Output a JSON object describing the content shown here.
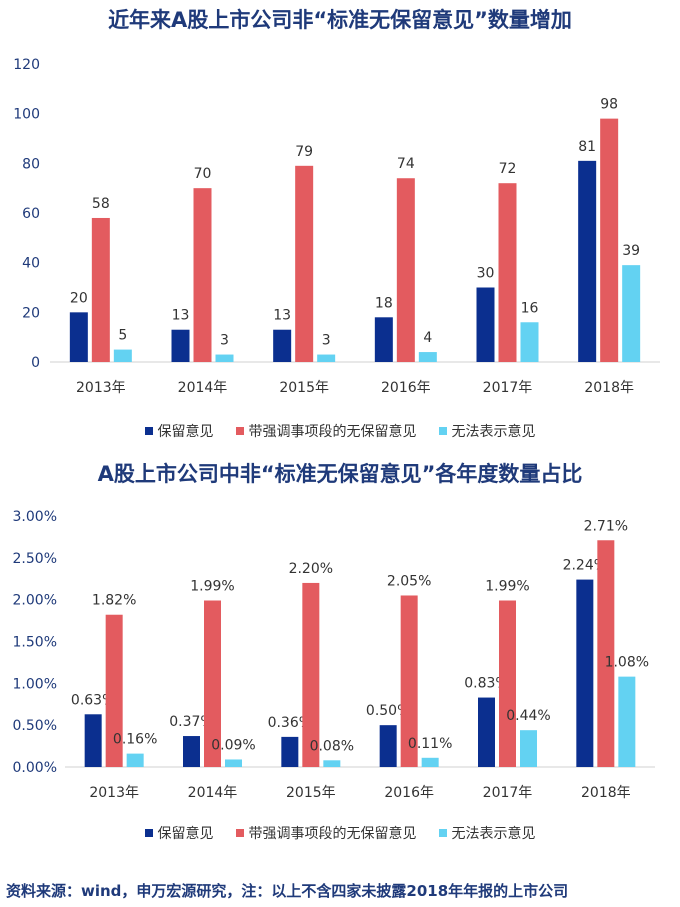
{
  "colors": {
    "retained": "#0b2f8f",
    "emphasis": "#e35b5f",
    "disclaimer": "#63d2f2",
    "title": "#1f3a7a"
  },
  "chart_data": [
    {
      "type": "bar",
      "title": "近年来A股上市公司非“标准无保留意见”数量增加",
      "categories": [
        "2013年",
        "2014年",
        "2015年",
        "2016年",
        "2017年",
        "2018年"
      ],
      "series": [
        {
          "name": "保留意见",
          "values": [
            20,
            13,
            13,
            18,
            30,
            81
          ]
        },
        {
          "name": "带强调事项段的无保留意见",
          "values": [
            58,
            70,
            79,
            74,
            72,
            98
          ]
        },
        {
          "name": "无法表示意见",
          "values": [
            5,
            3,
            3,
            4,
            16,
            39
          ]
        }
      ],
      "value_labels": [
        [
          "20",
          "13",
          "13",
          "18",
          "30",
          "81"
        ],
        [
          "58",
          "70",
          "79",
          "74",
          "72",
          "98"
        ],
        [
          "5",
          "3",
          "3",
          "4",
          "16",
          "39"
        ]
      ],
      "yticks": [
        "0",
        "20",
        "40",
        "60",
        "80",
        "100",
        "120"
      ],
      "ylim": [
        0,
        120
      ],
      "legend_position": "bottom"
    },
    {
      "type": "bar",
      "title": "A股上市公司中非“标准无保留意见”各年度数量占比",
      "categories": [
        "2013年",
        "2014年",
        "2015年",
        "2016年",
        "2017年",
        "2018年"
      ],
      "series": [
        {
          "name": "保留意见",
          "values": [
            0.63,
            0.37,
            0.36,
            0.5,
            0.83,
            2.24
          ]
        },
        {
          "name": "带强调事项段的无保留意见",
          "values": [
            1.82,
            1.99,
            2.2,
            2.05,
            1.99,
            2.71
          ]
        },
        {
          "name": "无法表示意见",
          "values": [
            0.16,
            0.09,
            0.08,
            0.11,
            0.44,
            1.08
          ]
        }
      ],
      "value_labels": [
        [
          "0.63%",
          "0.37%",
          "0.36%",
          "0.50%",
          "0.83%",
          "2.24%"
        ],
        [
          "1.82%",
          "1.99%",
          "2.20%",
          "2.05%",
          "1.99%",
          "2.71%"
        ],
        [
          "0.16%",
          "0.09%",
          "0.08%",
          "0.11%",
          "0.44%",
          "1.08%"
        ]
      ],
      "yticks": [
        "0.00%",
        "0.50%",
        "1.00%",
        "1.50%",
        "2.00%",
        "2.50%",
        "3.00%"
      ],
      "ylim": [
        0,
        3.0
      ],
      "legend_position": "bottom"
    }
  ],
  "legend": [
    {
      "name": "保留意见",
      "color": "#0b2f8f"
    },
    {
      "name": "带强调事项段的无保留意见",
      "color": "#e35b5f"
    },
    {
      "name": "无法表示意见",
      "color": "#63d2f2"
    }
  ],
  "footer": "资料来源：wind，申万宏源研究，注：以上不含四家未披露2018年年报的上市公司"
}
